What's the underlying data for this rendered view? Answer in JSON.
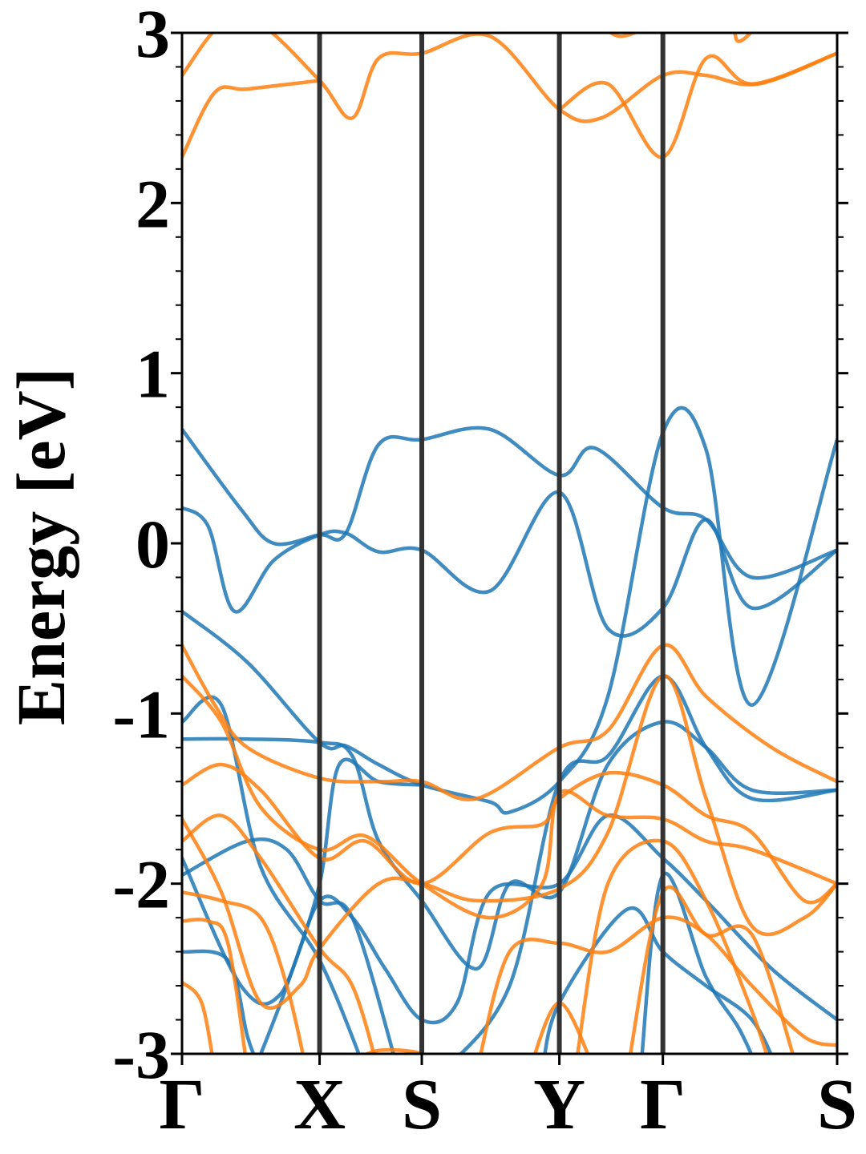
{
  "chart_data": {
    "type": "line",
    "title": "",
    "xlabel": "",
    "ylabel": "Energy [eV]",
    "ylim": [
      -3,
      3
    ],
    "yticks": [
      "3",
      "2",
      "1",
      "0",
      "-1",
      "-2",
      "-3"
    ],
    "ytick_values": [
      3,
      2,
      1,
      0,
      -1,
      -2,
      -3
    ],
    "kpath": {
      "labels": [
        "Γ",
        "X",
        "S",
        "Y",
        "Γ",
        "S"
      ],
      "positions": [
        0,
        0.21,
        0.366,
        0.576,
        0.734,
        1.0
      ]
    },
    "grid": false,
    "legend": "none",
    "colors": {
      "spin_blue": "#1f77b4",
      "spin_orange": "#ff7f0e",
      "kline": "#333333"
    },
    "series": [
      {
        "color": "blue",
        "points": [
          [
            0,
            0.67
          ],
          [
            0.09,
            0.2
          ],
          [
            0.14,
            0.0
          ],
          [
            0.21,
            0.05
          ],
          [
            0.25,
            0.06
          ],
          [
            0.3,
            0.58
          ],
          [
            0.366,
            0.61
          ],
          [
            0.47,
            0.67
          ],
          [
            0.576,
            0.4
          ],
          [
            0.63,
            0.56
          ],
          [
            0.734,
            0.21
          ],
          [
            0.8,
            0.14
          ],
          [
            0.87,
            -0.2
          ],
          [
            1.0,
            -0.04
          ]
        ]
      },
      {
        "color": "blue",
        "points": [
          [
            0,
            0.21
          ],
          [
            0.04,
            0.1
          ],
          [
            0.08,
            -0.4
          ],
          [
            0.14,
            -0.1
          ],
          [
            0.21,
            0.05
          ],
          [
            0.25,
            0.06
          ],
          [
            0.3,
            -0.05
          ],
          [
            0.366,
            -0.04
          ],
          [
            0.47,
            -0.28
          ],
          [
            0.576,
            0.3
          ],
          [
            0.65,
            -0.5
          ],
          [
            0.734,
            -0.38
          ],
          [
            0.8,
            0.14
          ],
          [
            0.87,
            -0.38
          ],
          [
            1.0,
            -0.04
          ]
        ]
      },
      {
        "color": "blue",
        "points": [
          [
            0,
            -0.4
          ],
          [
            0.1,
            -0.7
          ],
          [
            0.21,
            -1.17
          ],
          [
            0.25,
            -1.19
          ],
          [
            0.3,
            -1.3
          ],
          [
            0.366,
            -1.42
          ],
          [
            0.47,
            -1.52
          ],
          [
            0.5,
            -1.58
          ],
          [
            0.576,
            -1.4
          ],
          [
            0.65,
            -0.9
          ],
          [
            0.734,
            0.65
          ],
          [
            0.8,
            0.55
          ],
          [
            0.87,
            -0.95
          ],
          [
            1.0,
            0.61
          ]
        ]
      },
      {
        "color": "blue",
        "points": [
          [
            0,
            -1.15
          ],
          [
            0.1,
            -1.15
          ],
          [
            0.21,
            -1.17
          ],
          [
            0.26,
            -1.25
          ],
          [
            0.3,
            -1.75
          ],
          [
            0.366,
            -2.1
          ],
          [
            0.45,
            -2.5
          ],
          [
            0.5,
            -2.0
          ],
          [
            0.576,
            -2.05
          ],
          [
            0.65,
            -1.3
          ],
          [
            0.734,
            -1.05
          ],
          [
            0.8,
            -1.2
          ],
          [
            0.87,
            -1.45
          ],
          [
            1.0,
            -1.45
          ]
        ]
      },
      {
        "color": "blue",
        "points": [
          [
            0,
            -1.05
          ],
          [
            0.06,
            -0.95
          ],
          [
            0.12,
            -1.9
          ],
          [
            0.21,
            -2.45
          ],
          [
            0.28,
            -3.1
          ]
        ]
      },
      {
        "color": "blue",
        "points": [
          [
            0,
            -1.85
          ],
          [
            0.09,
            -2.6
          ],
          [
            0.15,
            -2.65
          ],
          [
            0.21,
            -2.1
          ],
          [
            0.26,
            -2.2
          ],
          [
            0.31,
            -2.5
          ],
          [
            0.366,
            -2.8
          ],
          [
            0.42,
            -2.7
          ],
          [
            0.47,
            -2.05
          ],
          [
            0.576,
            -2.0
          ],
          [
            0.65,
            -1.6
          ],
          [
            0.734,
            -1.85
          ],
          [
            0.8,
            -2.1
          ],
          [
            0.9,
            -2.5
          ],
          [
            1.0,
            -2.8
          ]
        ]
      },
      {
        "color": "blue",
        "points": [
          [
            0,
            -1.95
          ],
          [
            0.1,
            -1.75
          ],
          [
            0.16,
            -1.8
          ],
          [
            0.21,
            -2.1
          ],
          [
            0.26,
            -2.2
          ],
          [
            0.33,
            -3.1
          ]
        ]
      },
      {
        "color": "blue",
        "points": [
          [
            0,
            -2.4
          ],
          [
            0.07,
            -2.45
          ],
          [
            0.1,
            -2.9
          ],
          [
            0.12,
            -3.1
          ]
        ]
      },
      {
        "color": "blue",
        "points": [
          [
            0.11,
            -3.1
          ],
          [
            0.16,
            -2.6
          ],
          [
            0.21,
            -2.0
          ],
          [
            0.24,
            -1.3
          ],
          [
            0.3,
            -1.4
          ],
          [
            0.366,
            -1.42
          ]
        ]
      },
      {
        "color": "blue",
        "points": [
          [
            0.4,
            -3.1
          ],
          [
            0.5,
            -2.6
          ],
          [
            0.576,
            -1.4
          ],
          [
            0.65,
            -1.25
          ],
          [
            0.734,
            -0.78
          ],
          [
            0.8,
            -1.2
          ],
          [
            0.87,
            -1.5
          ],
          [
            1.0,
            -1.45
          ]
        ]
      },
      {
        "color": "blue",
        "points": [
          [
            0.55,
            -3.1
          ],
          [
            0.576,
            -2.7
          ],
          [
            0.68,
            -2.15
          ],
          [
            0.734,
            -2.4
          ],
          [
            0.8,
            -2.6
          ],
          [
            0.87,
            -2.8
          ],
          [
            0.91,
            -3.1
          ]
        ]
      },
      {
        "color": "blue",
        "points": [
          [
            0.7,
            -3.1
          ],
          [
            0.734,
            -1.95
          ],
          [
            0.8,
            -2.55
          ],
          [
            0.85,
            -2.85
          ],
          [
            0.88,
            -3.1
          ]
        ]
      },
      {
        "color": "orange",
        "points": [
          [
            0,
            2.75
          ],
          [
            0.06,
            3.05
          ],
          [
            0.12,
            3.05
          ],
          [
            0.21,
            2.72
          ],
          [
            0.26,
            2.5
          ],
          [
            0.3,
            2.85
          ],
          [
            0.366,
            2.88
          ],
          [
            0.47,
            2.98
          ],
          [
            0.576,
            2.55
          ],
          [
            0.64,
            2.5
          ],
          [
            0.734,
            2.75
          ],
          [
            0.8,
            2.75
          ],
          [
            0.88,
            2.7
          ],
          [
            1.0,
            2.88
          ]
        ]
      },
      {
        "color": "orange",
        "points": [
          [
            0,
            2.27
          ],
          [
            0.05,
            2.65
          ],
          [
            0.1,
            2.67
          ],
          [
            0.21,
            2.72
          ]
        ]
      },
      {
        "color": "orange",
        "points": [
          [
            0.576,
            2.55
          ],
          [
            0.65,
            2.7
          ],
          [
            0.734,
            2.27
          ],
          [
            0.8,
            2.85
          ],
          [
            0.87,
            2.7
          ],
          [
            1.0,
            2.88
          ]
        ]
      },
      {
        "color": "orange",
        "points": [
          [
            0.64,
            3.05
          ],
          [
            0.67,
            2.98
          ],
          [
            0.734,
            3.05
          ],
          [
            0.83,
            3.05
          ],
          [
            0.85,
            2.95
          ],
          [
            0.88,
            3.05
          ]
        ]
      },
      {
        "color": "orange",
        "points": [
          [
            0,
            -0.6
          ],
          [
            0.05,
            -0.95
          ],
          [
            0.1,
            -1.2
          ],
          [
            0.21,
            -1.38
          ],
          [
            0.3,
            -1.4
          ],
          [
            0.366,
            -1.4
          ],
          [
            0.45,
            -1.5
          ],
          [
            0.576,
            -1.2
          ],
          [
            0.65,
            -1.1
          ],
          [
            0.734,
            -0.6
          ],
          [
            0.8,
            -0.9
          ],
          [
            0.9,
            -1.2
          ],
          [
            1.0,
            -1.4
          ]
        ]
      },
      {
        "color": "orange",
        "points": [
          [
            0,
            -0.78
          ],
          [
            0.06,
            -1.05
          ],
          [
            0.12,
            -1.55
          ],
          [
            0.21,
            -1.8
          ],
          [
            0.28,
            -1.72
          ],
          [
            0.366,
            -2.0
          ],
          [
            0.47,
            -2.2
          ],
          [
            0.55,
            -2.0
          ],
          [
            0.576,
            -1.47
          ],
          [
            0.65,
            -1.6
          ],
          [
            0.734,
            -1.62
          ],
          [
            0.8,
            -1.75
          ],
          [
            0.87,
            -1.8
          ],
          [
            1.0,
            -2.0
          ]
        ]
      },
      {
        "color": "orange",
        "points": [
          [
            0,
            -1.42
          ],
          [
            0.06,
            -1.3
          ],
          [
            0.12,
            -1.45
          ],
          [
            0.21,
            -1.85
          ],
          [
            0.28,
            -1.75
          ],
          [
            0.366,
            -2.0
          ],
          [
            0.47,
            -1.7
          ],
          [
            0.55,
            -1.65
          ],
          [
            0.576,
            -1.5
          ],
          [
            0.65,
            -1.35
          ],
          [
            0.734,
            -1.42
          ],
          [
            0.8,
            -1.6
          ],
          [
            0.87,
            -1.7
          ],
          [
            0.95,
            -2.1
          ],
          [
            1.0,
            -2.0
          ]
        ]
      },
      {
        "color": "orange",
        "points": [
          [
            0,
            -1.62
          ],
          [
            0.06,
            -2.05
          ],
          [
            0.12,
            -2.7
          ],
          [
            0.18,
            -2.6
          ],
          [
            0.21,
            -2.38
          ],
          [
            0.3,
            -2.0
          ],
          [
            0.366,
            -2.0
          ],
          [
            0.45,
            -2.1
          ],
          [
            0.576,
            -2.03
          ],
          [
            0.65,
            -1.7
          ],
          [
            0.734,
            -0.78
          ],
          [
            0.8,
            -1.5
          ],
          [
            0.87,
            -2.25
          ],
          [
            0.95,
            -2.2
          ],
          [
            1.0,
            -2.0
          ]
        ]
      },
      {
        "color": "orange",
        "points": [
          [
            0,
            -1.75
          ],
          [
            0.06,
            -1.6
          ],
          [
            0.12,
            -1.85
          ],
          [
            0.21,
            -2.38
          ],
          [
            0.26,
            -2.6
          ],
          [
            0.3,
            -3.1
          ]
        ]
      },
      {
        "color": "orange",
        "points": [
          [
            0,
            -2.05
          ],
          [
            0.06,
            -2.1
          ],
          [
            0.12,
            -2.2
          ],
          [
            0.16,
            -2.6
          ],
          [
            0.19,
            -3.1
          ]
        ]
      },
      {
        "color": "orange",
        "points": [
          [
            0,
            -2.22
          ],
          [
            0.04,
            -2.22
          ],
          [
            0.07,
            -2.35
          ],
          [
            0.1,
            -3.1
          ]
        ]
      },
      {
        "color": "orange",
        "points": [
          [
            0,
            -2.58
          ],
          [
            0.03,
            -2.7
          ],
          [
            0.05,
            -3.1
          ]
        ]
      },
      {
        "color": "orange",
        "points": [
          [
            0.26,
            -3.05
          ],
          [
            0.3,
            -2.98
          ],
          [
            0.366,
            -3.0
          ],
          [
            0.38,
            -3.1
          ]
        ]
      },
      {
        "color": "orange",
        "points": [
          [
            0.45,
            -3.1
          ],
          [
            0.5,
            -2.4
          ],
          [
            0.576,
            -2.35
          ],
          [
            0.65,
            -2.4
          ],
          [
            0.734,
            -2.2
          ],
          [
            0.8,
            -2.3
          ],
          [
            0.87,
            -2.6
          ],
          [
            0.95,
            -2.9
          ],
          [
            1.0,
            -2.95
          ]
        ]
      },
      {
        "color": "orange",
        "points": [
          [
            0.53,
            -3.1
          ],
          [
            0.576,
            -2.7
          ],
          [
            0.63,
            -3.1
          ]
        ]
      },
      {
        "color": "orange",
        "points": [
          [
            0.6,
            -3.1
          ],
          [
            0.65,
            -2.0
          ],
          [
            0.734,
            -1.75
          ],
          [
            0.8,
            -2.1
          ],
          [
            0.87,
            -2.75
          ],
          [
            0.9,
            -3.1
          ]
        ]
      },
      {
        "color": "orange",
        "points": [
          [
            0.68,
            -3.1
          ],
          [
            0.734,
            -2.05
          ],
          [
            0.8,
            -2.3
          ],
          [
            0.87,
            -2.3
          ],
          [
            0.94,
            -3.1
          ]
        ]
      }
    ]
  }
}
